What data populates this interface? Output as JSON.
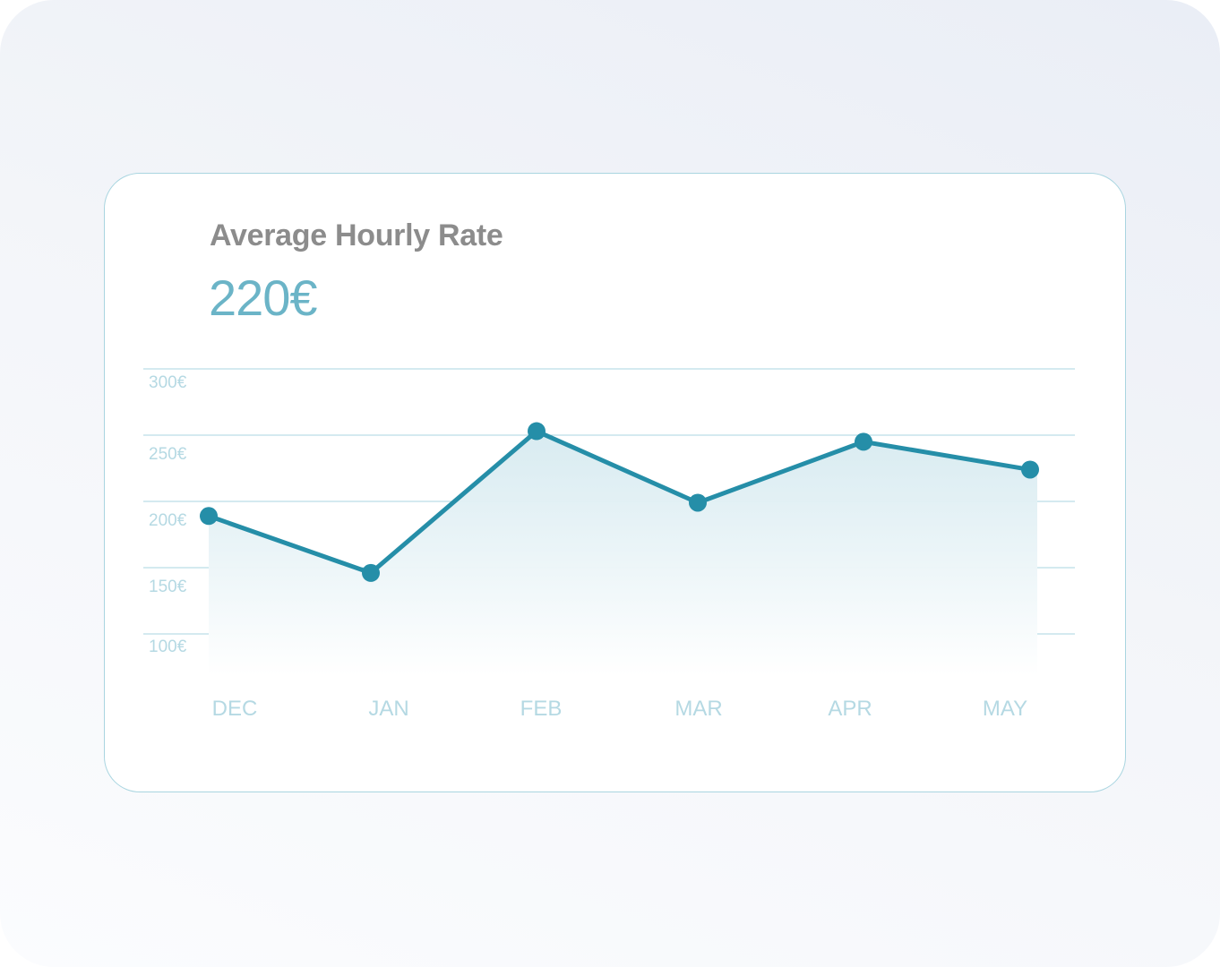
{
  "card": {
    "title": "Average Hourly Rate",
    "value": "220€"
  },
  "colors": {
    "line": "#258ea8",
    "grid": "#a9d5e0",
    "tick_text": "#b5d9e3",
    "title": "#8c8c8c",
    "value": "#6bb4c7"
  },
  "chart_data": {
    "type": "area",
    "categories": [
      "DEC",
      "JAN",
      "FEB",
      "MAR",
      "APR",
      "MAY"
    ],
    "values": [
      189,
      146,
      253,
      199,
      245,
      224
    ],
    "yticks": [
      300,
      250,
      200,
      150,
      100
    ],
    "ytick_labels": [
      "300€",
      "250€",
      "200€",
      "150€",
      "100€"
    ],
    "ylim": [
      100,
      300
    ],
    "grid": true,
    "markers": true
  }
}
